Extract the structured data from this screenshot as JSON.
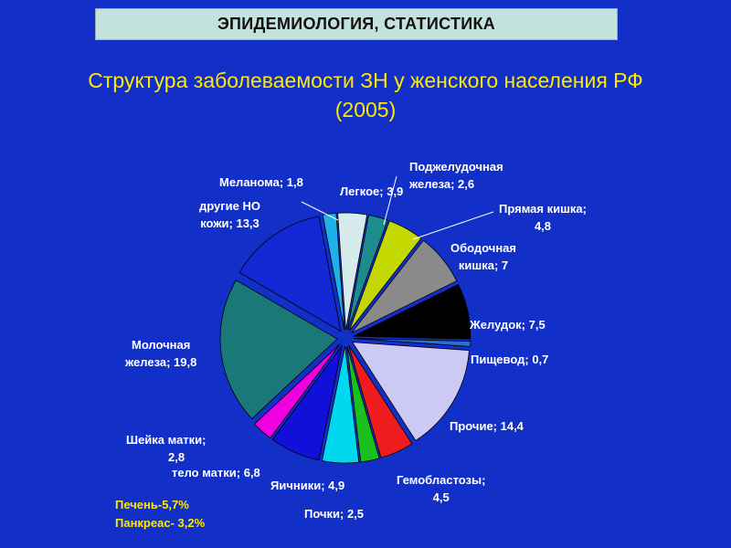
{
  "header": {
    "title": "ЭПИДЕМИОЛОГИЯ, СТАТИСТИКА"
  },
  "slide": {
    "title_line1": "Структура заболеваемости ЗН у женского населения РФ",
    "title_line2": "(2005)"
  },
  "notes": {
    "liver": "Печень-5,7%",
    "pancreas": "Панкреас- 3,2%"
  },
  "chart_data": {
    "type": "pie",
    "exploded": true,
    "slices": [
      {
        "name": "Легкое",
        "value": 3.9,
        "color": "#d6ecec",
        "label_lines": [
          "Легкое; 3,9"
        ]
      },
      {
        "name": "Поджелудочная железа",
        "value": 2.6,
        "color": "#1e8c8c",
        "label_lines": [
          "Поджелудочная",
          "железа; 2,6"
        ]
      },
      {
        "name": "Прямая кишка",
        "value": 4.8,
        "color": "#c2d800",
        "label_lines": [
          "Прямая кишка;",
          "4,8"
        ]
      },
      {
        "name": "Ободочная кишка",
        "value": 7,
        "color": "#8a8a8a",
        "label_lines": [
          "Ободочная",
          "кишка; 7"
        ]
      },
      {
        "name": "Желудок",
        "value": 7.5,
        "color": "#000000",
        "label_lines": [
          "Желудок; 7,5"
        ]
      },
      {
        "name": "Пищевод",
        "value": 0.7,
        "color": "#2a6fd0",
        "label_lines": [
          "Пищевод; 0,7"
        ]
      },
      {
        "name": "Прочие",
        "value": 14.4,
        "color": "#cccaf4",
        "label_lines": [
          "Прочие; 14,4"
        ]
      },
      {
        "name": "Гемобластозы",
        "value": 4.5,
        "color": "#ee1c1c",
        "label_lines": [
          "Гемобластозы;",
          "4,5"
        ]
      },
      {
        "name": "Почки",
        "value": 2.5,
        "color": "#19c01e",
        "label_lines": [
          "Почки; 2,5"
        ]
      },
      {
        "name": "Яичники",
        "value": 4.9,
        "color": "#00d8f0",
        "label_lines": [
          "Яичники; 4,9"
        ]
      },
      {
        "name": "тело матки",
        "value": 6.8,
        "color": "#1010d8",
        "label_lines": [
          "тело матки; 6,8"
        ]
      },
      {
        "name": "Шейка матки",
        "value": 2.8,
        "color": "#f000e0",
        "label_lines": [
          "Шейка матки;",
          "2,8"
        ]
      },
      {
        "name": "Молочная железа",
        "value": 19.8,
        "color": "#1a7878",
        "label_lines": [
          "Молочная",
          "железа; 19,8"
        ]
      },
      {
        "name": "другие НО кожи",
        "value": 13.3,
        "color": "#1428d6",
        "label_lines": [
          "другие НО",
          "кожи; 13,3"
        ]
      },
      {
        "name": "Меланома",
        "value": 1.8,
        "color": "#20b0e8",
        "label_lines": [
          "Меланома; 1,8"
        ]
      }
    ]
  }
}
